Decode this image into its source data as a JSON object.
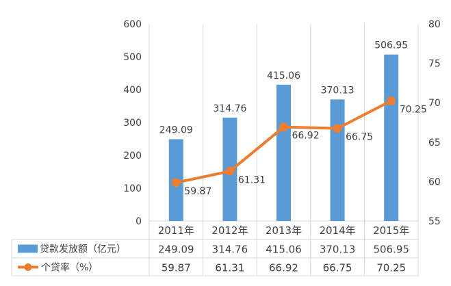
{
  "chart_data": {
    "type": "bar",
    "categories": [
      "2011年",
      "2012年",
      "2013年",
      "2014年",
      "2015年"
    ],
    "series": [
      {
        "name": "贷款发放额（亿元）",
        "type": "bar",
        "axis": "left",
        "values": [
          249.09,
          314.76,
          415.06,
          370.13,
          506.95
        ],
        "labels": [
          "249.09",
          "314.76",
          "415.06",
          "370.13",
          "506.95"
        ],
        "color": "#5b9bd5"
      },
      {
        "name": "个贷率（%）",
        "type": "line",
        "axis": "right",
        "values": [
          59.87,
          61.31,
          66.92,
          66.75,
          70.25
        ],
        "labels": [
          "59.87",
          "61.31",
          "66.92",
          "66.75",
          "70.25"
        ],
        "color": "#ed7d31"
      }
    ],
    "y_left": {
      "min": 0,
      "max": 600,
      "ticks": [
        "0",
        "100",
        "200",
        "300",
        "400",
        "500",
        "600"
      ]
    },
    "y_right": {
      "min": 55,
      "max": 80,
      "ticks": [
        "55",
        "60",
        "65",
        "70",
        "75",
        "80"
      ]
    },
    "grid": "vertical",
    "data_table": true,
    "text_color": "#404040",
    "grid_color": "#d9d9d9"
  }
}
